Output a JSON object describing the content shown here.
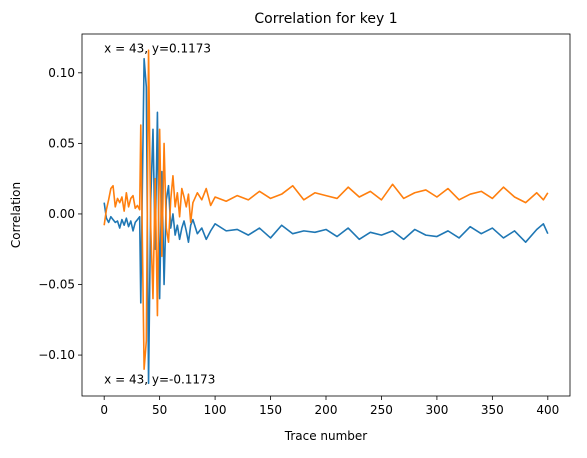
{
  "chart_data": {
    "type": "line",
    "title": "Correlation for key 1",
    "xlabel": "Trace number",
    "ylabel": "Correlation",
    "xlim": [
      -20,
      420
    ],
    "ylim": [
      -0.129,
      0.1275
    ],
    "xticks": [
      0,
      50,
      100,
      150,
      200,
      250,
      300,
      350,
      400
    ],
    "xtick_labels": [
      "0",
      "50",
      "100",
      "150",
      "200",
      "250",
      "300",
      "350",
      "400"
    ],
    "yticks": [
      -0.1,
      -0.05,
      0.0,
      0.05,
      0.1
    ],
    "ytick_labels": [
      "−0.10",
      "−0.05",
      "0.00",
      "0.05",
      "0.10"
    ],
    "grid": false,
    "legend": false,
    "annotations": [
      {
        "text": "x = 43, y=0.1173",
        "x": 0,
        "y": 0.1173
      },
      {
        "text": "x = 43, y=-0.1173",
        "x": 0,
        "y": -0.1173
      }
    ],
    "series": [
      {
        "color": "#1f77b4",
        "x": [
          0,
          2,
          4,
          6,
          8,
          10,
          12,
          14,
          16,
          18,
          20,
          22,
          24,
          26,
          28,
          30,
          32,
          33,
          34,
          36,
          38,
          40,
          42,
          44,
          46,
          48,
          50,
          52,
          54,
          56,
          58,
          60,
          62,
          64,
          66,
          68,
          70,
          72,
          74,
          76,
          78,
          80,
          84,
          88,
          92,
          96,
          100,
          110,
          120,
          130,
          140,
          150,
          160,
          170,
          180,
          190,
          200,
          210,
          220,
          230,
          240,
          250,
          260,
          270,
          280,
          290,
          300,
          310,
          320,
          330,
          340,
          350,
          360,
          370,
          380,
          390,
          396,
          400
        ],
        "y": [
          0.008,
          -0.003,
          -0.006,
          -0.002,
          -0.004,
          -0.006,
          -0.005,
          -0.01,
          -0.004,
          -0.008,
          -0.003,
          -0.009,
          -0.005,
          -0.012,
          -0.006,
          -0.004,
          -0.002,
          -0.063,
          -0.005,
          0.11,
          0.09,
          -0.12,
          0.01,
          0.06,
          -0.025,
          0.072,
          -0.06,
          0.03,
          -0.05,
          0.01,
          0.02,
          -0.01,
          0.0,
          -0.015,
          -0.008,
          -0.018,
          -0.01,
          -0.005,
          -0.012,
          -0.02,
          -0.008,
          -0.004,
          -0.014,
          -0.01,
          -0.018,
          -0.012,
          -0.007,
          -0.012,
          -0.011,
          -0.015,
          -0.01,
          -0.017,
          -0.008,
          -0.014,
          -0.012,
          -0.013,
          -0.011,
          -0.016,
          -0.01,
          -0.018,
          -0.013,
          -0.015,
          -0.012,
          -0.018,
          -0.011,
          -0.015,
          -0.016,
          -0.012,
          -0.017,
          -0.009,
          -0.014,
          -0.01,
          -0.017,
          -0.012,
          -0.02,
          -0.011,
          -0.007,
          -0.014
        ]
      },
      {
        "color": "#ff7f0e",
        "x": [
          0,
          2,
          4,
          6,
          8,
          10,
          12,
          14,
          16,
          18,
          20,
          22,
          24,
          26,
          28,
          30,
          32,
          33,
          34,
          36,
          38,
          40,
          42,
          44,
          46,
          48,
          50,
          52,
          54,
          56,
          58,
          60,
          62,
          64,
          66,
          68,
          70,
          72,
          74,
          76,
          78,
          80,
          84,
          88,
          92,
          96,
          100,
          110,
          120,
          130,
          140,
          150,
          160,
          170,
          180,
          190,
          200,
          210,
          220,
          230,
          240,
          250,
          260,
          270,
          280,
          290,
          300,
          310,
          320,
          330,
          340,
          350,
          360,
          370,
          380,
          390,
          396,
          400
        ],
        "y": [
          -0.008,
          0.003,
          0.01,
          0.018,
          0.02,
          0.005,
          0.011,
          0.008,
          0.012,
          0.002,
          0.015,
          0.005,
          0.011,
          0.013,
          0.004,
          0.006,
          0.003,
          0.063,
          0.005,
          -0.11,
          -0.09,
          0.116,
          -0.01,
          -0.06,
          0.025,
          -0.072,
          0.06,
          -0.03,
          0.05,
          -0.01,
          -0.02,
          0.01,
          0.027,
          0.005,
          0.015,
          -0.002,
          0.018,
          0.012,
          0.005,
          0.014,
          -0.006,
          0.008,
          0.015,
          0.01,
          0.018,
          0.006,
          0.012,
          0.009,
          0.013,
          0.01,
          0.016,
          0.011,
          0.014,
          0.02,
          0.01,
          0.015,
          0.013,
          0.011,
          0.019,
          0.012,
          0.016,
          0.01,
          0.021,
          0.011,
          0.015,
          0.017,
          0.012,
          0.018,
          0.01,
          0.014,
          0.016,
          0.011,
          0.019,
          0.012,
          0.008,
          0.015,
          0.01,
          0.015
        ]
      }
    ]
  }
}
